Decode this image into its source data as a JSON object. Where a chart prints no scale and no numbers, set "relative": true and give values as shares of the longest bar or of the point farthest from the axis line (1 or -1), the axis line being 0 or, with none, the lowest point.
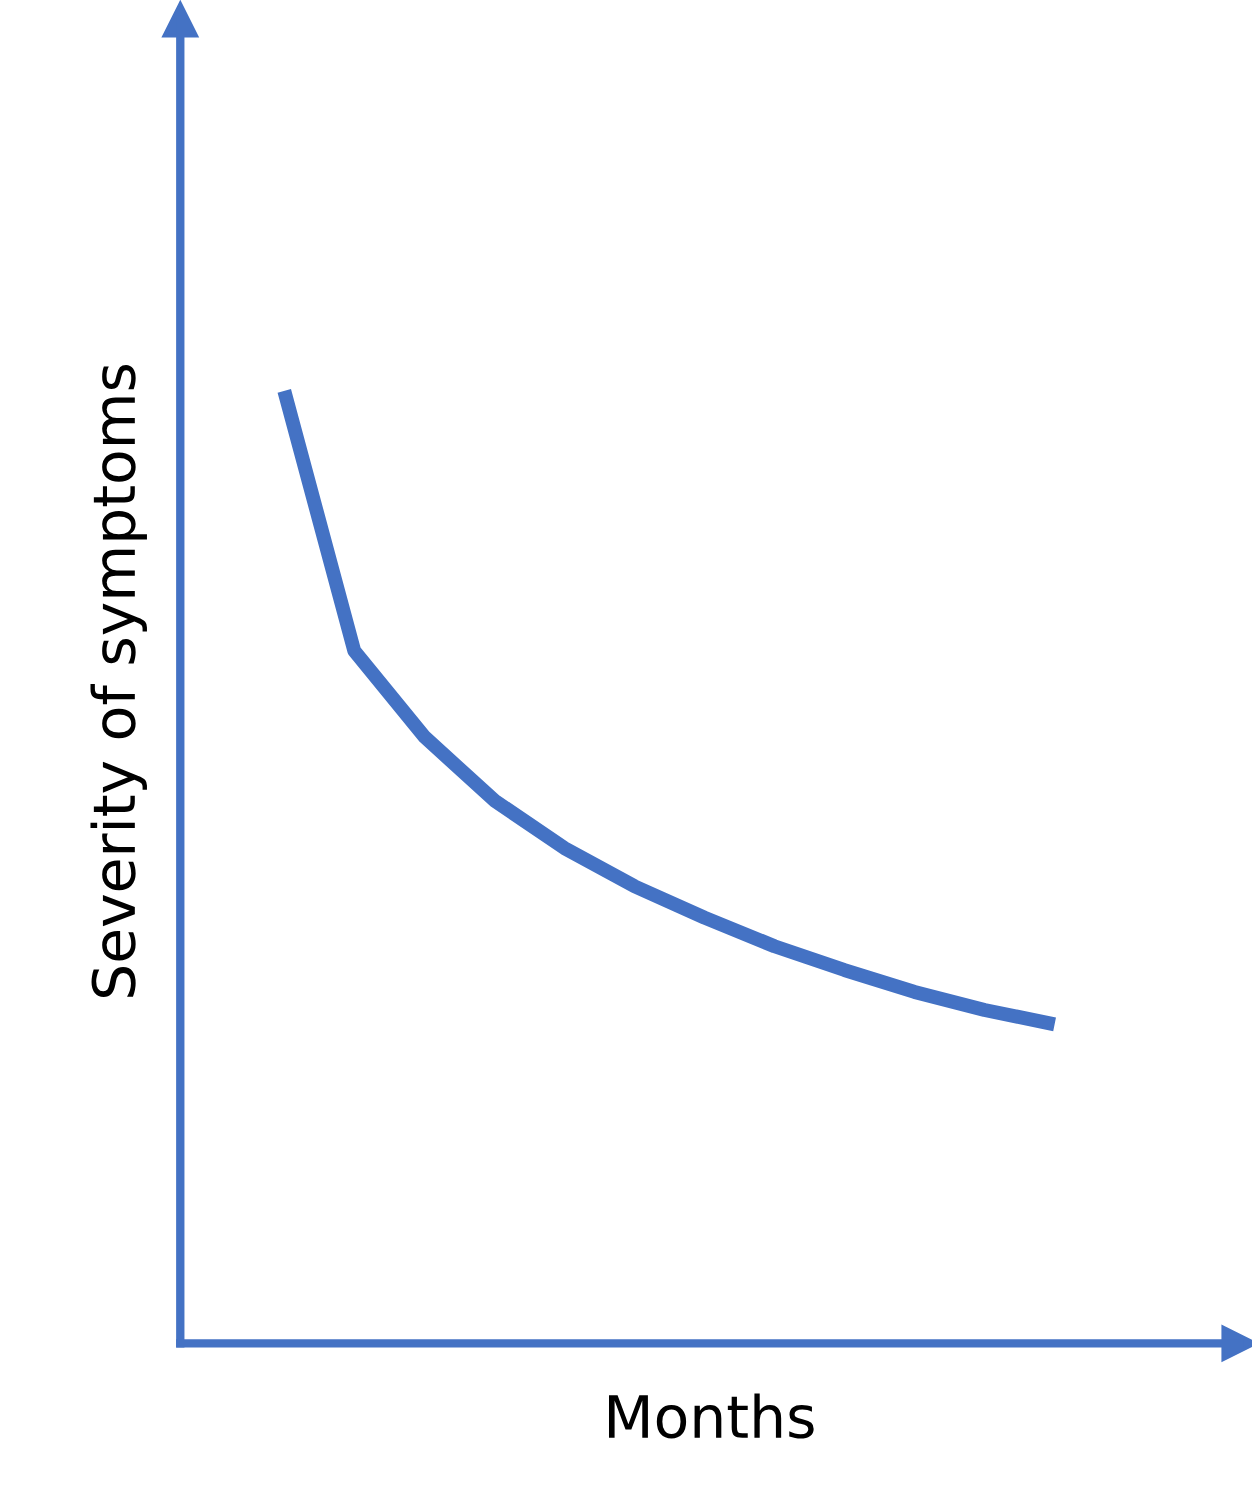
{
  "chart_data": {
    "type": "line",
    "relative": true,
    "xlabel": "Months",
    "ylabel": "Severity of symptoms",
    "categories": [
      null,
      null,
      null,
      null,
      null,
      null,
      null,
      null,
      null,
      null,
      null,
      null
    ],
    "series": [
      {
        "color": "#4472c4",
        "values": [
          1,
          0.727,
          0.637,
          0.57,
          0.52,
          0.48,
          0.447,
          0.417,
          0.392,
          0.369,
          0.35,
          0.335
        ]
      }
    ],
    "grid": false,
    "legend": false,
    "marker": "none",
    "line_style": "solid"
  }
}
